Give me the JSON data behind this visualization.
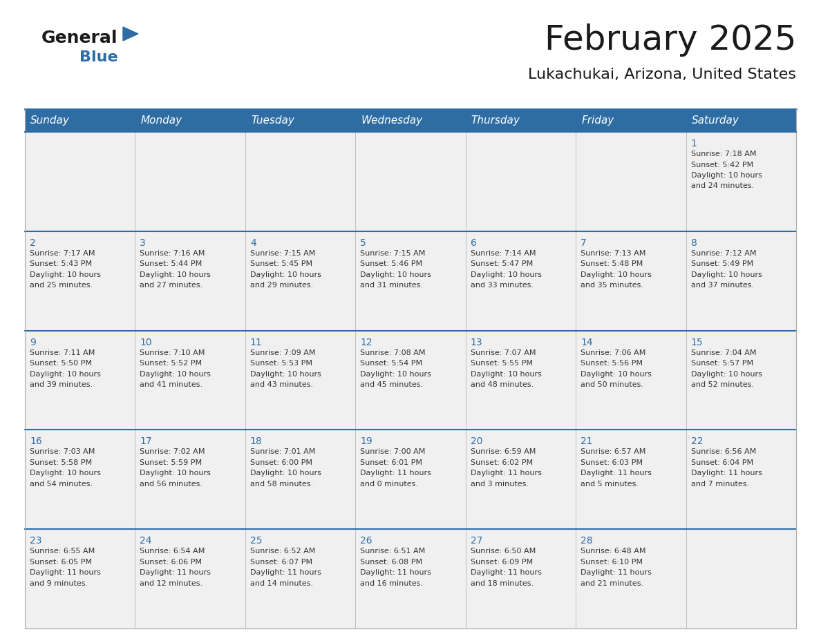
{
  "title": "February 2025",
  "subtitle": "Lukachukai, Arizona, United States",
  "header_bg": "#2E6DA4",
  "header_text_color": "#FFFFFF",
  "cell_bg_light": "#F0F0F0",
  "cell_bg_white": "#FFFFFF",
  "day_number_color": "#2E6DA4",
  "content_text_color": "#333333",
  "border_color": "#2E6DA4",
  "border_color_light": "#AAAAAA",
  "days_of_week": [
    "Sunday",
    "Monday",
    "Tuesday",
    "Wednesday",
    "Thursday",
    "Friday",
    "Saturday"
  ],
  "weeks": [
    [
      {
        "day": "",
        "info": ""
      },
      {
        "day": "",
        "info": ""
      },
      {
        "day": "",
        "info": ""
      },
      {
        "day": "",
        "info": ""
      },
      {
        "day": "",
        "info": ""
      },
      {
        "day": "",
        "info": ""
      },
      {
        "day": "1",
        "info": "Sunrise: 7:18 AM\nSunset: 5:42 PM\nDaylight: 10 hours\nand 24 minutes."
      }
    ],
    [
      {
        "day": "2",
        "info": "Sunrise: 7:17 AM\nSunset: 5:43 PM\nDaylight: 10 hours\nand 25 minutes."
      },
      {
        "day": "3",
        "info": "Sunrise: 7:16 AM\nSunset: 5:44 PM\nDaylight: 10 hours\nand 27 minutes."
      },
      {
        "day": "4",
        "info": "Sunrise: 7:15 AM\nSunset: 5:45 PM\nDaylight: 10 hours\nand 29 minutes."
      },
      {
        "day": "5",
        "info": "Sunrise: 7:15 AM\nSunset: 5:46 PM\nDaylight: 10 hours\nand 31 minutes."
      },
      {
        "day": "6",
        "info": "Sunrise: 7:14 AM\nSunset: 5:47 PM\nDaylight: 10 hours\nand 33 minutes."
      },
      {
        "day": "7",
        "info": "Sunrise: 7:13 AM\nSunset: 5:48 PM\nDaylight: 10 hours\nand 35 minutes."
      },
      {
        "day": "8",
        "info": "Sunrise: 7:12 AM\nSunset: 5:49 PM\nDaylight: 10 hours\nand 37 minutes."
      }
    ],
    [
      {
        "day": "9",
        "info": "Sunrise: 7:11 AM\nSunset: 5:50 PM\nDaylight: 10 hours\nand 39 minutes."
      },
      {
        "day": "10",
        "info": "Sunrise: 7:10 AM\nSunset: 5:52 PM\nDaylight: 10 hours\nand 41 minutes."
      },
      {
        "day": "11",
        "info": "Sunrise: 7:09 AM\nSunset: 5:53 PM\nDaylight: 10 hours\nand 43 minutes."
      },
      {
        "day": "12",
        "info": "Sunrise: 7:08 AM\nSunset: 5:54 PM\nDaylight: 10 hours\nand 45 minutes."
      },
      {
        "day": "13",
        "info": "Sunrise: 7:07 AM\nSunset: 5:55 PM\nDaylight: 10 hours\nand 48 minutes."
      },
      {
        "day": "14",
        "info": "Sunrise: 7:06 AM\nSunset: 5:56 PM\nDaylight: 10 hours\nand 50 minutes."
      },
      {
        "day": "15",
        "info": "Sunrise: 7:04 AM\nSunset: 5:57 PM\nDaylight: 10 hours\nand 52 minutes."
      }
    ],
    [
      {
        "day": "16",
        "info": "Sunrise: 7:03 AM\nSunset: 5:58 PM\nDaylight: 10 hours\nand 54 minutes."
      },
      {
        "day": "17",
        "info": "Sunrise: 7:02 AM\nSunset: 5:59 PM\nDaylight: 10 hours\nand 56 minutes."
      },
      {
        "day": "18",
        "info": "Sunrise: 7:01 AM\nSunset: 6:00 PM\nDaylight: 10 hours\nand 58 minutes."
      },
      {
        "day": "19",
        "info": "Sunrise: 7:00 AM\nSunset: 6:01 PM\nDaylight: 11 hours\nand 0 minutes."
      },
      {
        "day": "20",
        "info": "Sunrise: 6:59 AM\nSunset: 6:02 PM\nDaylight: 11 hours\nand 3 minutes."
      },
      {
        "day": "21",
        "info": "Sunrise: 6:57 AM\nSunset: 6:03 PM\nDaylight: 11 hours\nand 5 minutes."
      },
      {
        "day": "22",
        "info": "Sunrise: 6:56 AM\nSunset: 6:04 PM\nDaylight: 11 hours\nand 7 minutes."
      }
    ],
    [
      {
        "day": "23",
        "info": "Sunrise: 6:55 AM\nSunset: 6:05 PM\nDaylight: 11 hours\nand 9 minutes."
      },
      {
        "day": "24",
        "info": "Sunrise: 6:54 AM\nSunset: 6:06 PM\nDaylight: 11 hours\nand 12 minutes."
      },
      {
        "day": "25",
        "info": "Sunrise: 6:52 AM\nSunset: 6:07 PM\nDaylight: 11 hours\nand 14 minutes."
      },
      {
        "day": "26",
        "info": "Sunrise: 6:51 AM\nSunset: 6:08 PM\nDaylight: 11 hours\nand 16 minutes."
      },
      {
        "day": "27",
        "info": "Sunrise: 6:50 AM\nSunset: 6:09 PM\nDaylight: 11 hours\nand 18 minutes."
      },
      {
        "day": "28",
        "info": "Sunrise: 6:48 AM\nSunset: 6:10 PM\nDaylight: 11 hours\nand 21 minutes."
      },
      {
        "day": "",
        "info": ""
      }
    ]
  ],
  "logo_general_color": "#1a1a1a",
  "logo_blue_color": "#2E6DA4",
  "logo_triangle_color": "#2E6DA4",
  "title_fontsize": 36,
  "subtitle_fontsize": 16,
  "header_fontsize": 11,
  "day_num_fontsize": 10,
  "cell_text_fontsize": 8
}
